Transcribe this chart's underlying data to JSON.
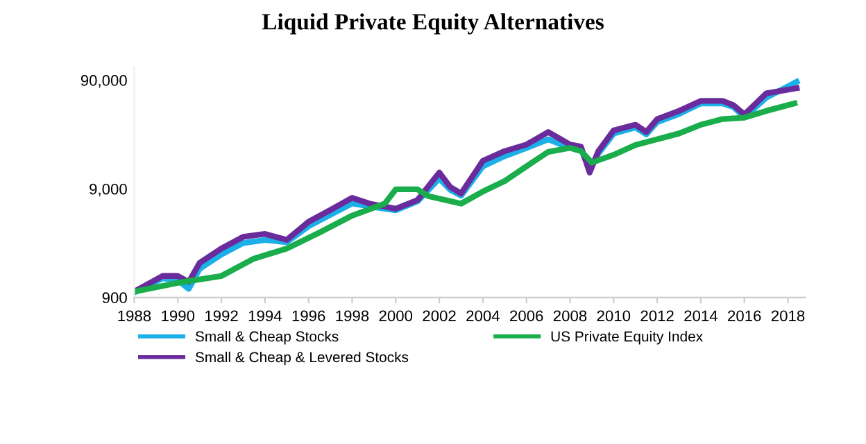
{
  "chart_data": {
    "type": "line",
    "title": "Liquid Private Equity Alternatives",
    "log": "y",
    "grid": false,
    "legend": "bottom",
    "marker": "none",
    "line_style": "solid",
    "xlim": [
      1988,
      2018.8
    ],
    "xticks": [
      1988,
      1990,
      1992,
      1994,
      1996,
      1998,
      2000,
      2002,
      2004,
      2006,
      2008,
      2010,
      2012,
      2014,
      2016,
      2018
    ],
    "ylim": [
      900,
      120000
    ],
    "yticks": [
      {
        "value": 900,
        "label": "900"
      },
      {
        "value": 9000,
        "label": "9,000"
      },
      {
        "value": 90000,
        "label": "90,000"
      }
    ],
    "series": [
      {
        "name": "Small & Cheap Stocks",
        "color": "#1cb0e8",
        "x": [
          1988,
          1989.3,
          1990,
          1990.5,
          1991,
          1992,
          1993,
          1994,
          1995,
          1996,
          1997,
          1998,
          1998.8,
          2000,
          2001,
          2002,
          2002.5,
          2003,
          2004,
          2005,
          2006,
          2007,
          2008,
          2008.5,
          2008.9,
          2009.3,
          2010,
          2011,
          2011.5,
          2012,
          2013,
          2014,
          2015,
          2015.5,
          2016,
          2017,
          2018.4
        ],
        "values": [
          1000,
          1350,
          1300,
          1080,
          1650,
          2240,
          2850,
          3050,
          2900,
          4070,
          5200,
          6600,
          6200,
          5700,
          6900,
          11200,
          8800,
          7800,
          14500,
          18000,
          21400,
          25700,
          21400,
          21000,
          13500,
          19000,
          29000,
          33000,
          28500,
          37000,
          44000,
          55000,
          55000,
          51000,
          41000,
          62000,
          87000
        ]
      },
      {
        "name": "Small & Cheap & Levered Stocks",
        "color": "#6a2c9c",
        "x": [
          1988,
          1989.3,
          1990,
          1990.5,
          1991,
          1992,
          1993,
          1994,
          1995,
          1996,
          1997,
          1998,
          1998.8,
          2000,
          2001,
          2002,
          2002.5,
          2003,
          2004,
          2005,
          2006,
          2007,
          2008,
          2008.5,
          2008.9,
          2009.3,
          2010,
          2011,
          2011.5,
          2012,
          2013,
          2014,
          2015,
          2015.5,
          2016,
          2017,
          2018.4
        ],
        "values": [
          1020,
          1420,
          1420,
          1250,
          1870,
          2540,
          3250,
          3460,
          3050,
          4470,
          5740,
          7440,
          6580,
          5900,
          7100,
          12700,
          9370,
          8150,
          16300,
          20000,
          23000,
          30000,
          23000,
          22000,
          12700,
          20000,
          31000,
          35000,
          30000,
          39500,
          46900,
          58000,
          58000,
          53000,
          43500,
          68000,
          76000
        ]
      },
      {
        "name": "US Private Equity Index",
        "color": "#19ad4b",
        "x": [
          1988,
          1990,
          1992,
          1993.5,
          1995,
          1996.5,
          1998,
          1999.5,
          2000,
          2001,
          2001.5,
          2003,
          2004,
          2005,
          2006,
          2007,
          2008,
          2008.5,
          2009,
          2010,
          2011,
          2012,
          2013,
          2014,
          2015,
          2016,
          2017,
          2018.3
        ],
        "values": [
          1017,
          1227,
          1420,
          2055,
          2540,
          3560,
          5100,
          6580,
          8900,
          8900,
          7700,
          6580,
          8500,
          10600,
          14500,
          19700,
          21400,
          20000,
          15700,
          18500,
          22800,
          25700,
          29100,
          35000,
          39500,
          40700,
          46900,
          55000
        ]
      }
    ]
  }
}
